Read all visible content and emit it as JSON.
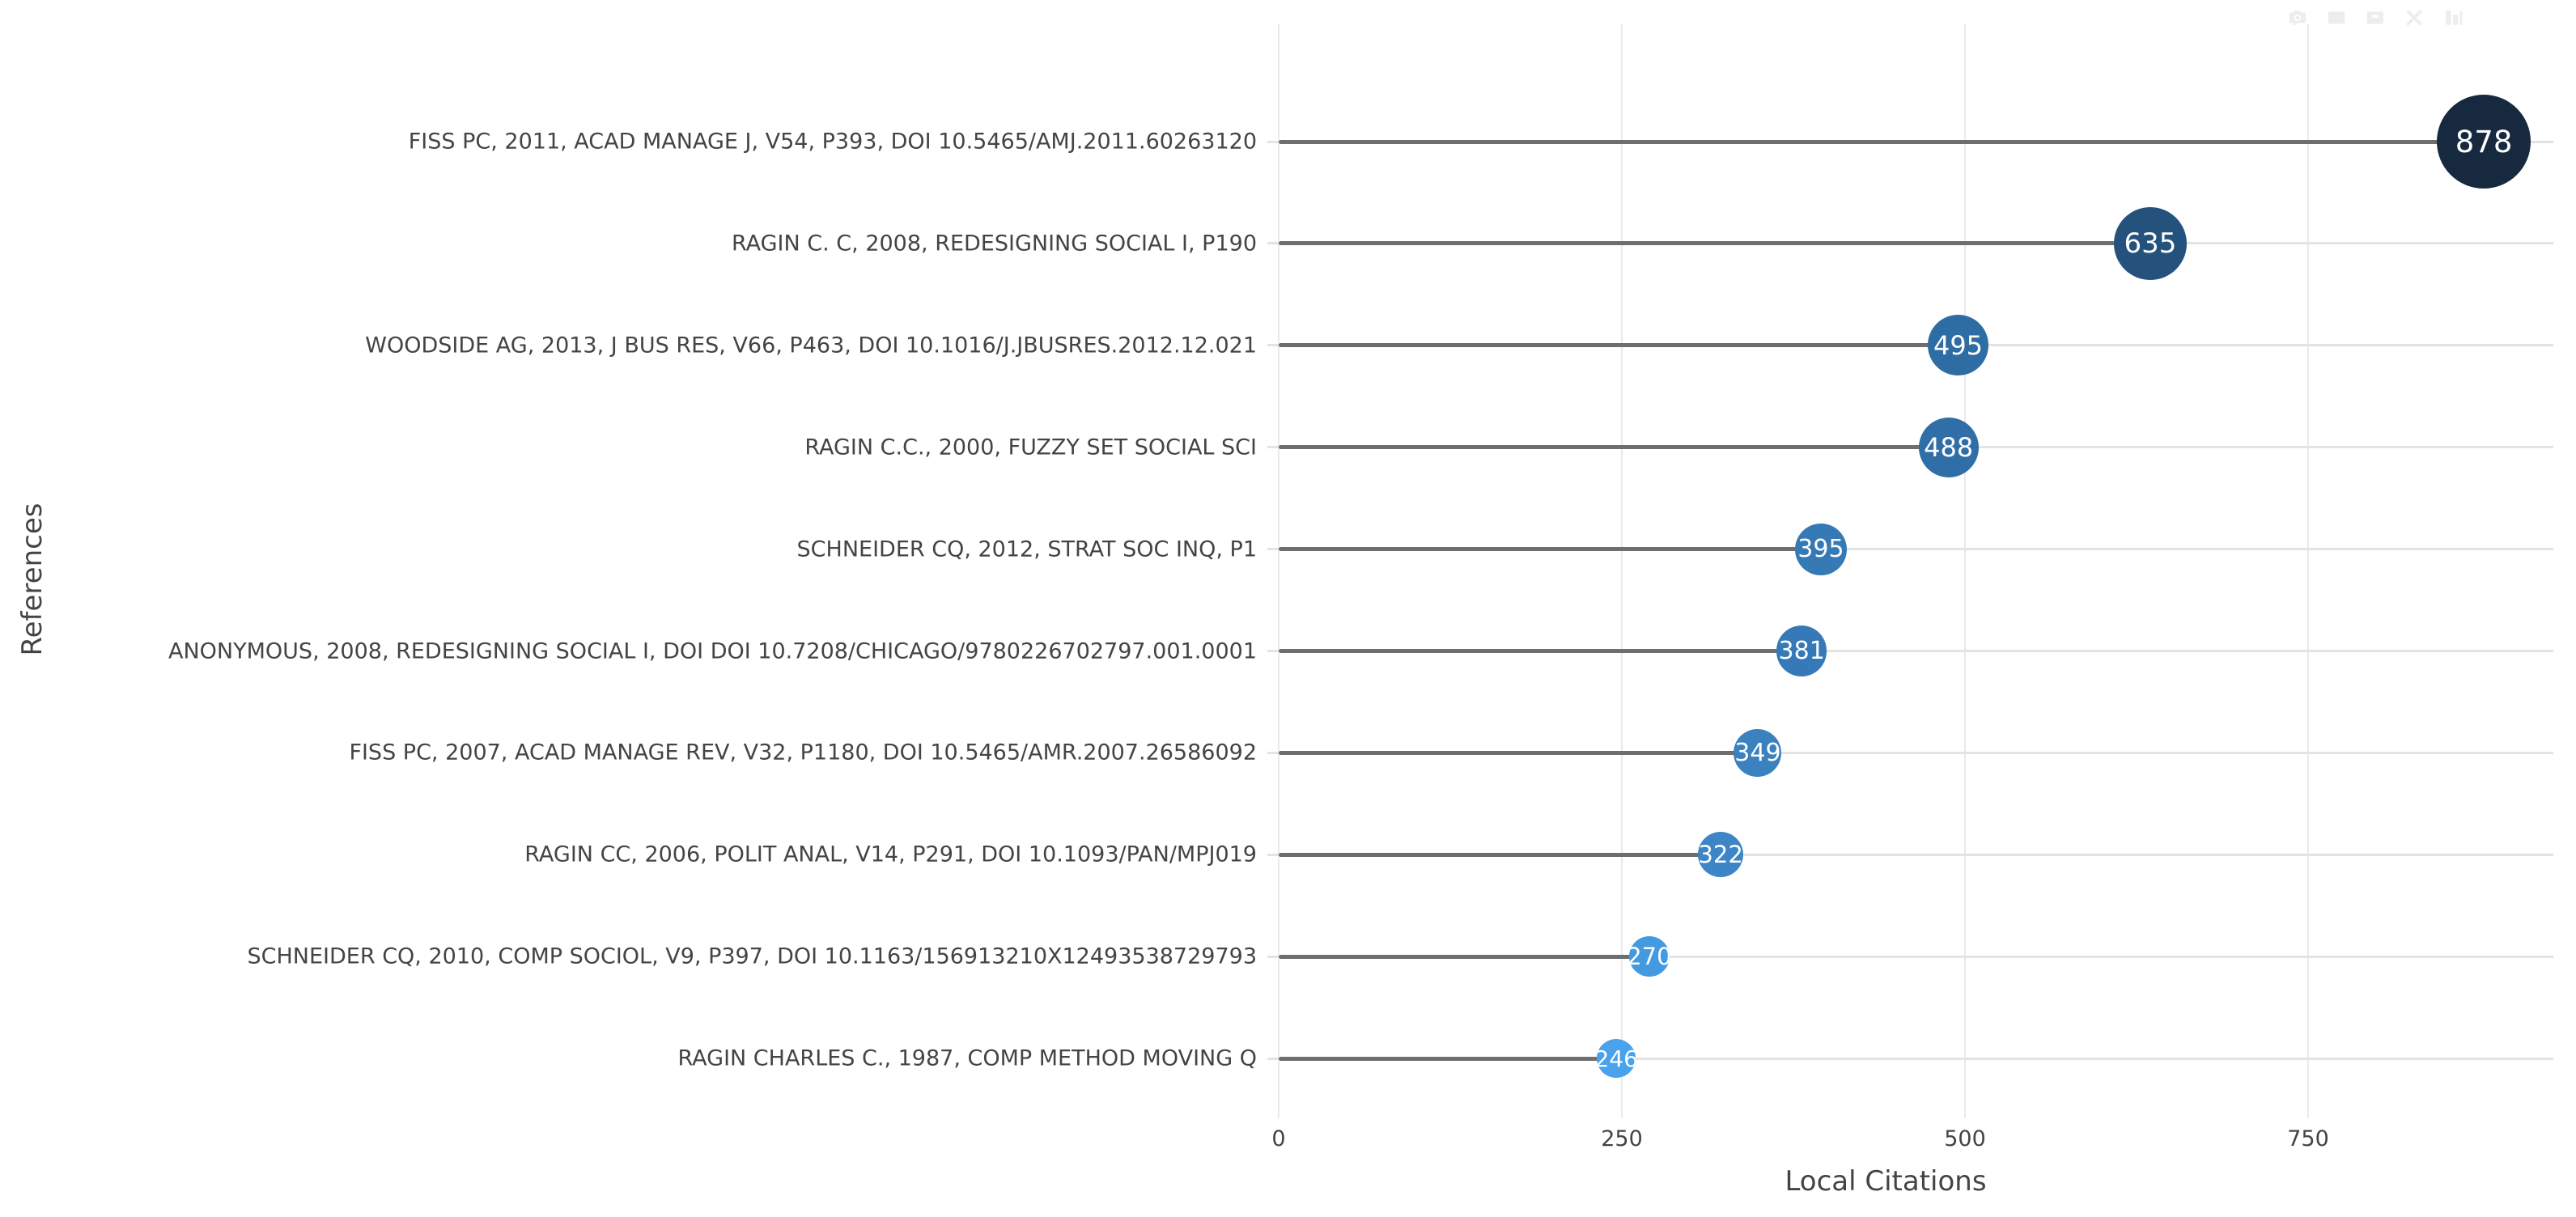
{
  "modebar": {
    "icons": [
      {
        "name": "camera"
      },
      {
        "name": "zoom"
      },
      {
        "name": "pan"
      },
      {
        "name": "autoscale"
      },
      {
        "name": "plotly-logo"
      }
    ],
    "icon_color": "#ededed"
  },
  "chart_data": {
    "type": "scatter",
    "variant": "horizontal-lollipop",
    "title": "",
    "xlabel": "Local Citations",
    "ylabel": "References",
    "categories": [
      "FISS PC, 2011, ACAD MANAGE J, V54, P393, DOI 10.5465/AMJ.2011.60263120",
      "RAGIN C. C, 2008, REDESIGNING SOCIAL I, P190",
      "WOODSIDE AG, 2013, J BUS RES, V66, P463, DOI 10.1016/J.JBUSRES.2012.12.021",
      "RAGIN C.C., 2000, FUZZY SET SOCIAL SCI",
      "SCHNEIDER CQ, 2012, STRAT SOC INQ, P1",
      "ANONYMOUS, 2008, REDESIGNING SOCIAL I, DOI DOI 10.7208/CHICAGO/9780226702797.001.0001",
      "FISS PC, 2007, ACAD MANAGE REV, V32, P1180, DOI 10.5465/AMR.2007.26586092",
      "RAGIN CC, 2006, POLIT ANAL, V14, P291, DOI 10.1093/PAN/MPJ019",
      "SCHNEIDER CQ, 2010, COMP SOCIOL, V9, P397, DOI 10.1163/156913210X12493538729793",
      "RAGIN CHARLES C., 1987, COMP METHOD MOVING Q"
    ],
    "values": [
      878,
      635,
      495,
      488,
      395,
      381,
      349,
      322,
      270,
      246
    ],
    "point_colors": [
      "#16293e",
      "#24527c",
      "#2e6da4",
      "#2f6ea6",
      "#3579b5",
      "#3579b8",
      "#3b80bf",
      "#3d85c6",
      "#449ae0",
      "#4aa2ec"
    ],
    "value_label_color": "#ffffff",
    "xticks": [
      0,
      250,
      500,
      750
    ],
    "xlim": [
      -10,
      930
    ],
    "grid": true,
    "legend": false,
    "grid_color": "#eaeaea",
    "track_color": "#e3e3e3",
    "stem_color": "#6e6e6e",
    "text_color": "#444444"
  }
}
